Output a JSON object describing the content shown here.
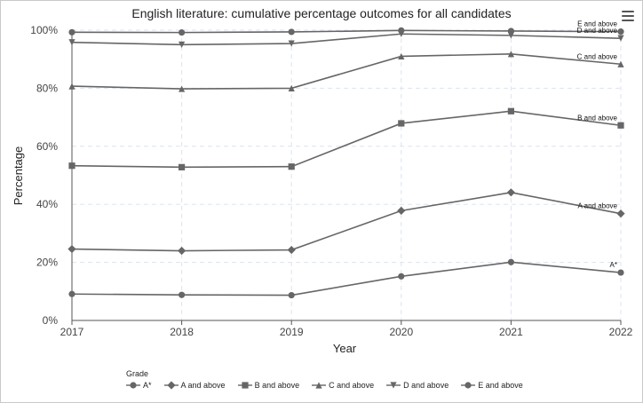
{
  "chart_data": {
    "type": "line",
    "title": "English literature: cumulative percentage outcomes for all candidates",
    "xlabel": "Year",
    "ylabel": "Percentage",
    "x": [
      "2017",
      "2018",
      "2019",
      "2020",
      "2021",
      "2022"
    ],
    "ylim": [
      0,
      100
    ],
    "yticks": [
      "0%",
      "20%",
      "40%",
      "60%",
      "80%",
      "100%"
    ],
    "grid": true,
    "legend_title": "Grade",
    "legend_position": "bottom-left",
    "series": [
      {
        "name": "A*",
        "marker": "circle",
        "values": [
          9.1,
          8.8,
          8.7,
          15.2,
          20.1,
          16.5
        ]
      },
      {
        "name": "A and above",
        "marker": "diamond",
        "values": [
          24.6,
          24.0,
          24.3,
          37.8,
          44.1,
          36.8
        ]
      },
      {
        "name": "B and above",
        "marker": "square",
        "values": [
          53.3,
          52.8,
          53.0,
          67.9,
          72.1,
          67.2
        ]
      },
      {
        "name": "C and above",
        "marker": "triangle-up",
        "values": [
          80.7,
          79.8,
          80.0,
          91.0,
          91.8,
          88.3
        ]
      },
      {
        "name": "D and above",
        "marker": "triangle-down",
        "values": [
          95.8,
          95.0,
          95.4,
          98.7,
          98.2,
          97.2
        ]
      },
      {
        "name": "E and above",
        "marker": "circle",
        "values": [
          99.3,
          99.2,
          99.4,
          99.9,
          99.7,
          99.5
        ]
      }
    ],
    "end_labels": [
      "A*",
      "A and above",
      "B and above",
      "C and above",
      "D and above",
      "E and above"
    ],
    "colors": {
      "series": "#666666",
      "grid": "#dde3ee",
      "axis": "#555555"
    }
  }
}
